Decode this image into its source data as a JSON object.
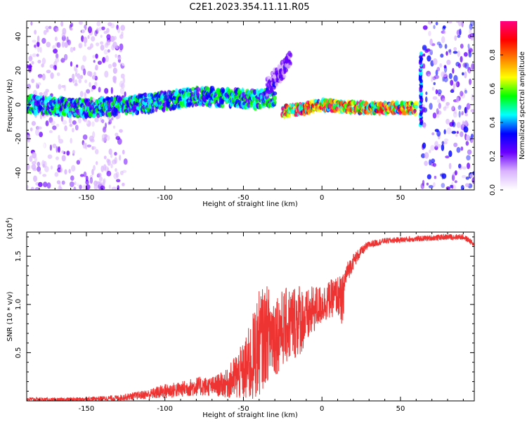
{
  "title": "C2E1.2023.354.11.11.R05",
  "chart_data": [
    {
      "type": "heatmap",
      "xlabel": "Height of straight line (km)",
      "ylabel": "Frequency (Hz)",
      "xlim": [
        -188,
        97
      ],
      "ylim": [
        -50,
        49
      ],
      "x_ticks": [
        -150,
        -100,
        -50,
        0,
        50
      ],
      "y_ticks": [
        -40,
        -20,
        0,
        20,
        40
      ],
      "x_tick_labels": [
        "-150",
        "-100",
        "-50",
        "0",
        "50"
      ],
      "y_tick_labels": [
        "-40",
        "-20",
        "0",
        "20",
        "40"
      ],
      "colorbar": {
        "label": "Normalized spectral amplitude",
        "range": [
          0.0,
          1.0
        ],
        "ticks": [
          0.0,
          0.2,
          0.4,
          0.6,
          0.8
        ],
        "tick_labels": [
          "0.0",
          "0.2",
          "0.4",
          "0.6",
          "0.8"
        ],
        "colormap": [
          "#ffffff",
          "#d9b3ff",
          "#6a00ff",
          "#0000ff",
          "#00ffff",
          "#00ff00",
          "#ffff00",
          "#ff8000",
          "#ff0000",
          "#ff0080"
        ]
      },
      "features": [
        {
          "name": "noise region",
          "x_range": [
            -188,
            -125
          ],
          "freq_range": [
            -50,
            49
          ],
          "amplitude": 0.15
        },
        {
          "name": "ridge",
          "x": [
            -188,
            -150,
            -120,
            -100,
            -80,
            -60,
            -40,
            -30
          ],
          "freq": [
            0,
            -2,
            0,
            2,
            5,
            4,
            3,
            5
          ],
          "amplitude": 0.4
        },
        {
          "name": "chirp",
          "x": [
            -35,
            -30,
            -25,
            -20
          ],
          "freq": [
            10,
            15,
            20,
            27
          ],
          "amplitude": 0.2
        },
        {
          "name": "carrier",
          "x": [
            -25,
            -10,
            0,
            10,
            30,
            60
          ],
          "freq": [
            -4,
            -2,
            0,
            -1,
            -2,
            -2
          ],
          "amplitude": 0.7
        },
        {
          "name": "spike",
          "x": 63,
          "freq_range": [
            -12,
            30
          ],
          "amplitude": 0.35
        },
        {
          "name": "noise region",
          "x_range": [
            64,
            97
          ],
          "freq_range": [
            -50,
            49
          ],
          "amplitude": 0.25
        }
      ]
    },
    {
      "type": "line",
      "xlabel": "Height of straight line (km)",
      "ylabel": "SNR (10 * v/v)",
      "scale_label": "(x10^4)",
      "scale_base": "(x10",
      "scale_exp": "4",
      "xlim": [
        -188,
        97
      ],
      "ylim": [
        0,
        1.75
      ],
      "x_ticks": [
        -150,
        -100,
        -50,
        0,
        50
      ],
      "y_ticks": [
        0.5,
        1.0,
        1.5
      ],
      "x_tick_labels": [
        "-150",
        "-100",
        "-50",
        "0",
        "50"
      ],
      "y_tick_labels": [
        "0.5",
        "1.0",
        "1.5"
      ],
      "color": "#ee3333",
      "series": [
        {
          "x": [
            -188,
            -170,
            -150,
            -130,
            -120,
            -110,
            -100,
            -90,
            -80,
            -70,
            -60,
            -55,
            -50,
            -45,
            -40,
            -35,
            -30,
            -25,
            -20,
            -15,
            -10,
            -5,
            0,
            5,
            10,
            13,
            15,
            20,
            25,
            30,
            40,
            50,
            60,
            70,
            80,
            90,
            95,
            97
          ],
          "y": [
            0.02,
            0.01,
            0.02,
            0.03,
            0.05,
            0.07,
            0.1,
            0.12,
            0.15,
            0.15,
            0.18,
            0.25,
            0.3,
            0.4,
            0.6,
            0.7,
            0.7,
            0.75,
            0.8,
            0.85,
            0.85,
            0.95,
            1.0,
            1.05,
            1.1,
            1.0,
            1.3,
            1.45,
            1.55,
            1.62,
            1.66,
            1.67,
            1.68,
            1.69,
            1.7,
            1.7,
            1.65,
            1.6
          ],
          "noise_amplitude": [
            0.02,
            0.02,
            0.02,
            0.03,
            0.04,
            0.05,
            0.08,
            0.08,
            0.1,
            0.1,
            0.15,
            0.25,
            0.3,
            0.45,
            0.55,
            0.5,
            0.45,
            0.4,
            0.4,
            0.4,
            0.3,
            0.25,
            0.2,
            0.2,
            0.2,
            0.3,
            0.12,
            0.08,
            0.05,
            0.04,
            0.03,
            0.03,
            0.03,
            0.03,
            0.03,
            0.03,
            0.03,
            0.03
          ]
        }
      ]
    }
  ]
}
